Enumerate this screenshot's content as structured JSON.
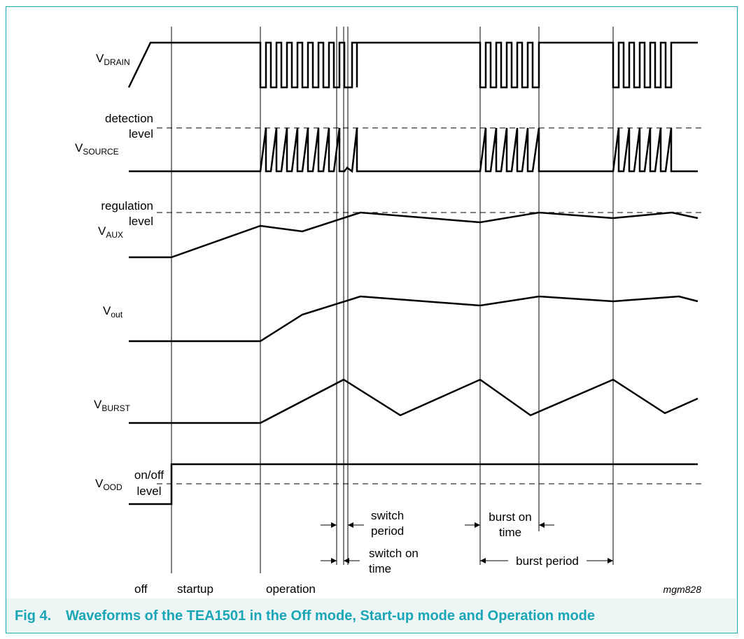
{
  "diagram": {
    "signals": [
      {
        "id": "drain",
        "main": "V",
        "sub": "DRAIN"
      },
      {
        "id": "source",
        "main": "V",
        "sub": "SOURCE"
      },
      {
        "id": "aux",
        "main": "V",
        "sub": "AUX"
      },
      {
        "id": "out",
        "main": "V",
        "sub": "out"
      },
      {
        "id": "burst",
        "main": "V",
        "sub": "BURST"
      },
      {
        "id": "ood",
        "main": "V",
        "sub": "OOD"
      }
    ],
    "level_labels": {
      "detection_line1": "detection",
      "detection_line2": "level",
      "regulation_line1": "regulation",
      "regulation_line2": "level",
      "onoff_line1": "on/off",
      "onoff_line2": "level"
    },
    "annotations": {
      "switch_period_line1": "switch",
      "switch_period_line2": "period",
      "switch_on_line1": "switch on",
      "switch_on_line2": "time",
      "burst_on_line1": "burst on",
      "burst_on_line2": "time",
      "burst_period": "burst period"
    },
    "phases": {
      "off": "off",
      "startup": "startup",
      "operation": "operation"
    },
    "figure_id": "mgm828"
  },
  "caption": {
    "number": "Fig 4.",
    "text": "Waveforms of the TEA1501 in the Off mode, Start-up mode and Operation mode"
  },
  "colors": {
    "accent": "#1aa6b7",
    "caption_bg": "#eef5f5"
  }
}
